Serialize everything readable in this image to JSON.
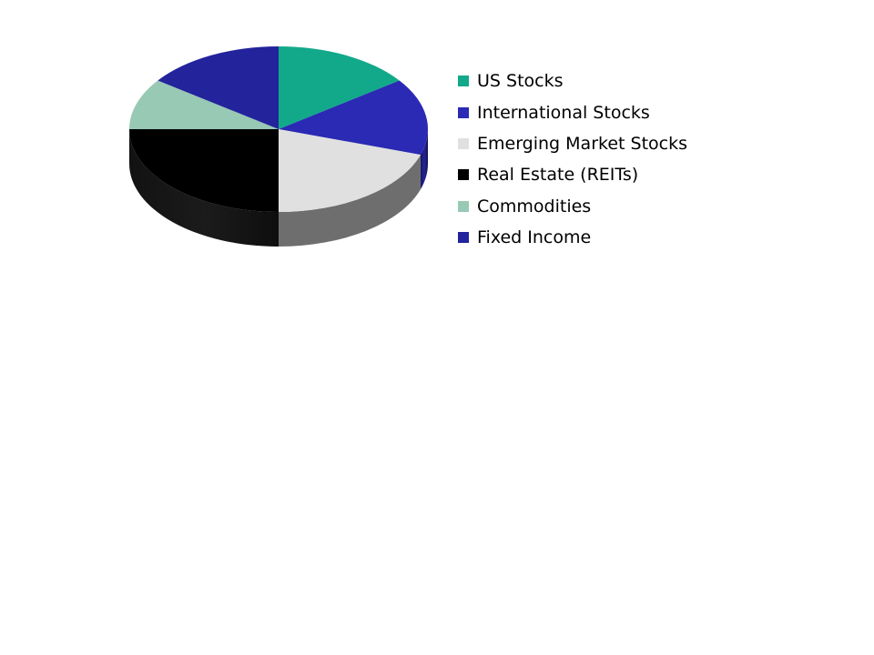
{
  "chart_data": {
    "type": "pie",
    "three_d": true,
    "title": "",
    "legend_position": "right",
    "categories": [
      "US Stocks",
      "International Stocks",
      "Emerging Market Stocks",
      "Real Estate (REITs)",
      "Commodities",
      "Fixed Income"
    ],
    "values": [
      15,
      15,
      20,
      25,
      10,
      15
    ],
    "unit": "%",
    "colors": [
      "#12a98a",
      "#2a2ab4",
      "#e0e0e0",
      "#000000",
      "#98c9b4",
      "#23239c"
    ]
  }
}
